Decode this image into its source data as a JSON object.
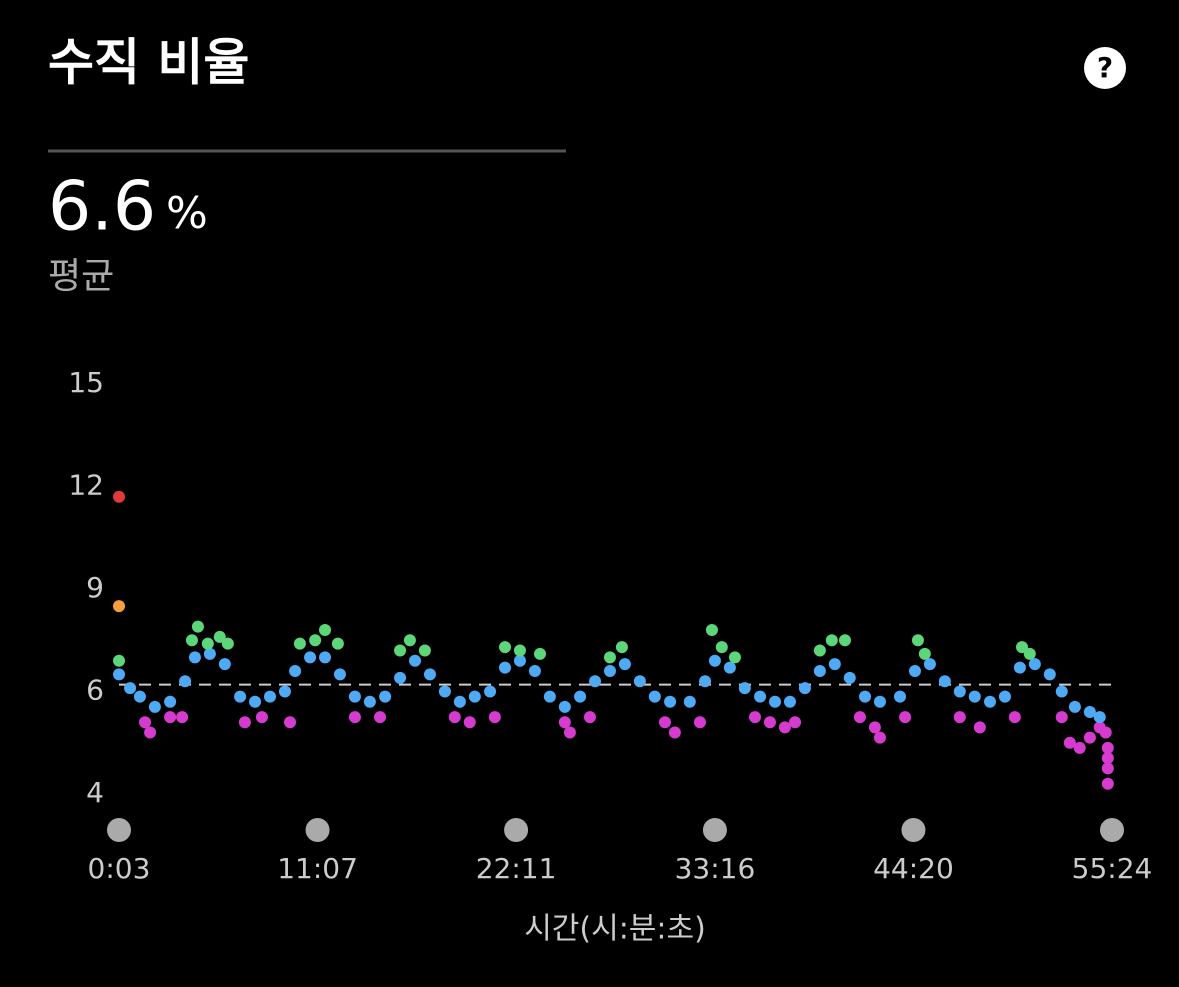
{
  "header": {
    "title": "수직 비율",
    "help_icon": "?"
  },
  "summary": {
    "value": "6.6",
    "unit": "%",
    "label": "평균"
  },
  "chart_data": {
    "type": "scatter",
    "xlabel": "시간(시:분:초)",
    "xlim": [
      3,
      3324
    ],
    "xticks": [
      {
        "value": 3,
        "label": "0:03"
      },
      {
        "value": 667,
        "label": "11:07"
      },
      {
        "value": 1331,
        "label": "22:11"
      },
      {
        "value": 1996,
        "label": "33:16"
      },
      {
        "value": 2660,
        "label": "44:20"
      },
      {
        "value": 3324,
        "label": "55:24"
      }
    ],
    "ylim": [
      4,
      15
    ],
    "yticks": [
      4,
      6,
      9,
      12,
      15
    ],
    "reference_line": 6.2,
    "series": [
      {
        "color": "#d63bd0",
        "x": [
          90,
          107,
          174,
          214,
          424,
          481,
          575,
          792,
          876,
          1126,
          1176,
          1260,
          1494,
          1511,
          1578,
          1829,
          1862,
          1946,
          2130,
          2180,
          2230,
          2264,
          2481,
          2531,
          2548,
          2632,
          2815,
          2882,
          2999,
          3156,
          3183,
          3216,
          3250,
          3283,
          3303,
          3310,
          3310,
          3310,
          3310
        ],
        "values": [
          5.4,
          5.2,
          5.5,
          5.5,
          5.4,
          5.5,
          5.4,
          5.5,
          5.5,
          5.5,
          5.4,
          5.5,
          5.4,
          5.2,
          5.5,
          5.4,
          5.2,
          5.4,
          5.5,
          5.4,
          5.3,
          5.4,
          5.5,
          5.3,
          5.1,
          5.5,
          5.5,
          5.3,
          5.5,
          5.5,
          5.0,
          4.9,
          5.1,
          5.3,
          5.2,
          4.9,
          4.5,
          4.2,
          4.7
        ]
      },
      {
        "color": "#4faaf5",
        "x": [
          3,
          40,
          73,
          123,
          174,
          224,
          257,
          307,
          357,
          408,
          458,
          508,
          558,
          592,
          642,
          692,
          742,
          792,
          842,
          893,
          943,
          993,
          1043,
          1093,
          1143,
          1193,
          1244,
          1294,
          1344,
          1394,
          1444,
          1494,
          1545,
          1595,
          1645,
          1695,
          1745,
          1795,
          1846,
          1912,
          1963,
          1996,
          2046,
          2096,
          2147,
          2197,
          2247,
          2297,
          2347,
          2397,
          2447,
          2498,
          2548,
          2615,
          2665,
          2715,
          2765,
          2815,
          2865,
          2916,
          2966,
          3016,
          3066,
          3116,
          3156,
          3200,
          3250,
          3283
        ],
        "values": [
          6.5,
          6.1,
          5.9,
          5.7,
          5.8,
          6.3,
          7.0,
          7.1,
          6.8,
          5.9,
          5.8,
          5.9,
          6.0,
          6.6,
          7.0,
          7.0,
          6.5,
          5.9,
          5.8,
          5.9,
          6.4,
          6.9,
          6.5,
          6.0,
          5.8,
          5.9,
          6.0,
          6.7,
          6.9,
          6.6,
          5.9,
          5.7,
          5.9,
          6.3,
          6.6,
          6.8,
          6.3,
          5.9,
          5.8,
          5.8,
          6.3,
          6.9,
          6.7,
          6.1,
          5.9,
          5.8,
          5.8,
          6.1,
          6.6,
          6.8,
          6.4,
          5.9,
          5.8,
          5.9,
          6.6,
          6.8,
          6.3,
          6.0,
          5.9,
          5.8,
          5.9,
          6.7,
          6.8,
          6.5,
          6.0,
          5.7,
          5.6,
          5.5
        ]
      },
      {
        "color": "#5dd67a",
        "x": [
          3,
          247,
          267,
          300,
          340,
          367,
          608,
          659,
          692,
          735,
          943,
          976,
          1026,
          1294,
          1344,
          1411,
          1645,
          1685,
          1986,
          2019,
          2063,
          2347,
          2387,
          2431,
          2675,
          2698,
          3023,
          3049
        ],
        "values": [
          6.9,
          7.5,
          7.9,
          7.4,
          7.6,
          7.4,
          7.4,
          7.5,
          7.8,
          7.4,
          7.2,
          7.5,
          7.2,
          7.3,
          7.2,
          7.1,
          7.0,
          7.3,
          7.8,
          7.3,
          7.0,
          7.2,
          7.5,
          7.5,
          7.5,
          7.1,
          7.3,
          7.1
        ]
      },
      {
        "color": "#f5a03c",
        "x": [
          3
        ],
        "values": [
          8.5
        ]
      },
      {
        "color": "#e03a3a",
        "x": [
          3
        ],
        "values": [
          11.7
        ]
      }
    ]
  }
}
